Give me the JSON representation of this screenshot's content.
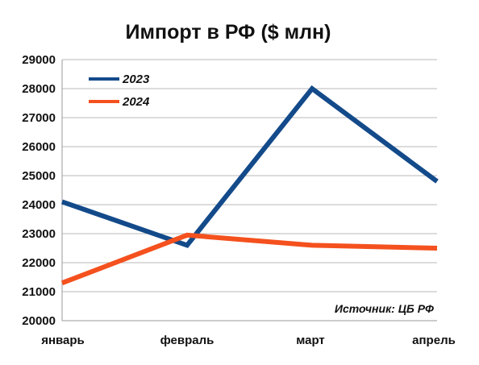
{
  "chart_data": {
    "type": "line",
    "title": "Импорт в РФ ($ млн)",
    "categories": [
      "январь",
      "февраль",
      "март",
      "апрель"
    ],
    "series": [
      {
        "name": "2023",
        "color": "#134a8a",
        "values": [
          24100,
          22600,
          28000,
          24800
        ]
      },
      {
        "name": "2024",
        "color": "#f4511e",
        "values": [
          21300,
          22950,
          22600,
          22500
        ]
      }
    ],
    "ylim": [
      20000,
      29000
    ],
    "yticks": [
      29000,
      28000,
      27000,
      26000,
      25000,
      24000,
      23000,
      22000,
      21000,
      20000
    ],
    "grid": "horizontal",
    "legend_position": "top-left",
    "source_note": "Источник: ЦБ РФ"
  }
}
